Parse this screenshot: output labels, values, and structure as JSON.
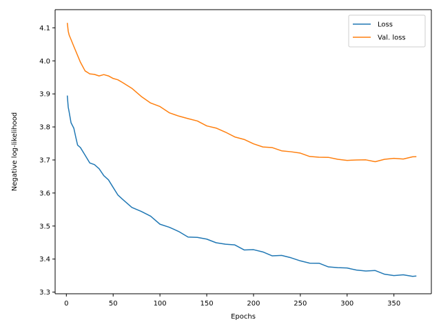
{
  "chart_data": {
    "type": "line",
    "title": "",
    "xlabel": "Epochs",
    "ylabel": "Negative log-likelihood",
    "xlim": [
      -12,
      390
    ],
    "ylim": [
      3.295,
      4.155
    ],
    "xticks": [
      0,
      50,
      100,
      150,
      200,
      250,
      300,
      350
    ],
    "yticks": [
      3.3,
      3.4,
      3.5,
      3.6,
      3.7,
      3.8,
      3.9,
      4.0,
      4.1
    ],
    "ytick_labels": [
      "3.3",
      "3.4",
      "3.5",
      "3.6",
      "3.7",
      "3.8",
      "3.9",
      "4.0",
      "4.1"
    ],
    "grid": false,
    "legend_position": "top-right",
    "series": [
      {
        "name": "Loss",
        "color": "#1f77b4",
        "x": [
          1,
          2,
          3,
          5,
          8,
          10,
          12,
          15,
          20,
          25,
          30,
          35,
          40,
          45,
          50,
          55,
          60,
          70,
          80,
          90,
          100,
          110,
          120,
          130,
          140,
          150,
          160,
          170,
          180,
          190,
          200,
          210,
          220,
          230,
          240,
          250,
          260,
          270,
          280,
          290,
          300,
          310,
          320,
          330,
          340,
          350,
          360,
          370,
          374
        ],
        "y": [
          3.895,
          3.86,
          3.845,
          3.81,
          3.8,
          3.77,
          3.75,
          3.735,
          3.71,
          3.695,
          3.68,
          3.67,
          3.655,
          3.635,
          3.615,
          3.595,
          3.58,
          3.56,
          3.54,
          3.525,
          3.51,
          3.495,
          3.482,
          3.47,
          3.463,
          3.455,
          3.45,
          3.445,
          3.437,
          3.43,
          3.425,
          3.42,
          3.412,
          3.406,
          3.4,
          3.396,
          3.39,
          3.385,
          3.38,
          3.376,
          3.372,
          3.37,
          3.365,
          3.36,
          3.355,
          3.352,
          3.35,
          3.348,
          3.347
        ]
      },
      {
        "name": "Val. loss",
        "color": "#ff7f0e",
        "x": [
          1,
          2,
          3,
          5,
          8,
          10,
          15,
          20,
          25,
          30,
          35,
          40,
          45,
          50,
          55,
          60,
          70,
          80,
          90,
          100,
          110,
          120,
          130,
          140,
          150,
          160,
          170,
          180,
          190,
          200,
          210,
          220,
          230,
          240,
          250,
          260,
          270,
          280,
          290,
          300,
          310,
          320,
          330,
          340,
          350,
          360,
          370,
          374
        ],
        "y": [
          4.115,
          4.09,
          4.078,
          4.065,
          4.045,
          4.03,
          3.995,
          3.97,
          3.96,
          3.958,
          3.957,
          3.956,
          3.952,
          3.947,
          3.94,
          3.933,
          3.915,
          3.895,
          3.875,
          3.86,
          3.843,
          3.835,
          3.825,
          3.82,
          3.805,
          3.795,
          3.785,
          3.772,
          3.762,
          3.75,
          3.742,
          3.735,
          3.73,
          3.725,
          3.72,
          3.713,
          3.71,
          3.706,
          3.703,
          3.7,
          3.698,
          3.7,
          3.697,
          3.7,
          3.703,
          3.705,
          3.707,
          3.71
        ]
      }
    ]
  }
}
